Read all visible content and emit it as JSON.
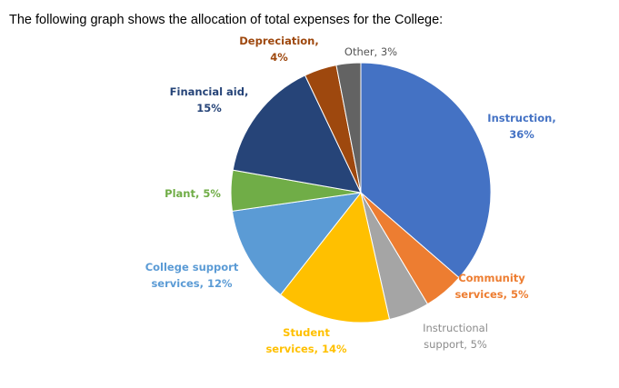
{
  "heading": "The following graph shows the allocation of total expenses for the College:",
  "chart_data": {
    "type": "pie",
    "start_angle": "12 o'clock",
    "direction": "clockwise",
    "slices": [
      {
        "label": "Instruction,",
        "value_label": "36%",
        "value": 36,
        "color": "#4472C4"
      },
      {
        "label": "Community",
        "value_label": "services, 5%",
        "value": 5,
        "color": "#ED7D31"
      },
      {
        "label": "Instructional",
        "value_label": "support, 5%",
        "value": 5,
        "color": "#A5A5A5"
      },
      {
        "label": "Student",
        "value_label": "services, 14%",
        "value": 14,
        "color": "#FFC000"
      },
      {
        "label": "College support",
        "value_label": "services, 12%",
        "value": 12,
        "color": "#5B9BD5"
      },
      {
        "label": "Plant, 5%",
        "value_label": "",
        "value": 5,
        "color": "#70AD47"
      },
      {
        "label": "Financial aid,",
        "value_label": "15%",
        "value": 15,
        "color": "#264478"
      },
      {
        "label": "Depreciation,",
        "value_label": "4%",
        "value": 4,
        "color": "#9E480E"
      },
      {
        "label": "Other, 3%",
        "value_label": "",
        "value": 3,
        "color": "#636363"
      }
    ]
  }
}
